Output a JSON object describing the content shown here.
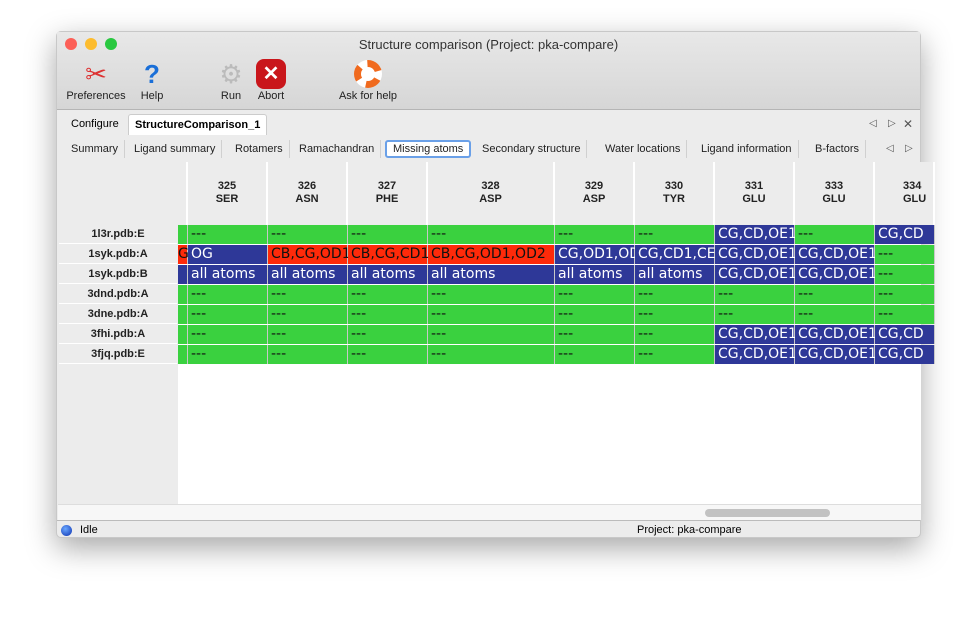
{
  "window": {
    "title": "Structure comparison (Project: pka-compare)"
  },
  "toolbar": [
    {
      "label": "Preferences",
      "icon": "tools-icon"
    },
    {
      "label": "Help",
      "icon": "help-icon"
    },
    {
      "label": "Run",
      "icon": "gear-icon"
    },
    {
      "label": "Abort",
      "icon": "abort-icon"
    },
    {
      "label": "Ask for help",
      "icon": "lifebuoy-icon"
    }
  ],
  "outer_tabs": [
    "Configure",
    "StructureComparison_1"
  ],
  "outer_active": 1,
  "inner_tabs": [
    "Summary",
    "Ligand summary",
    "Rotamers",
    "Ramachandran",
    "Missing atoms",
    "Secondary structure",
    "Water locations",
    "Ligand information",
    "B-factors"
  ],
  "inner_active": 4,
  "colors": {
    "present": "#3ad13f",
    "missing_partial": "#2e3898",
    "missing_differs": "#fe2a0a"
  },
  "table": {
    "columns": [
      {
        "num": "",
        "res": ""
      },
      {
        "num": "325",
        "res": "SER"
      },
      {
        "num": "326",
        "res": "ASN"
      },
      {
        "num": "327",
        "res": "PHE"
      },
      {
        "num": "328",
        "res": "ASP"
      },
      {
        "num": "329",
        "res": "ASP"
      },
      {
        "num": "330",
        "res": "TYR"
      },
      {
        "num": "331",
        "res": "GLU"
      },
      {
        "num": "333",
        "res": "GLU"
      },
      {
        "num": "334",
        "res": "GLU"
      }
    ],
    "rows": [
      {
        "label": "1l3r.pdb:E",
        "cells": [
          [
            "",
            "g"
          ],
          [
            "---",
            "g"
          ],
          [
            "---",
            "g"
          ],
          [
            "---",
            "g"
          ],
          [
            "---",
            "g"
          ],
          [
            "---",
            "g"
          ],
          [
            "---",
            "g"
          ],
          [
            "CG,CD,OE1",
            "b"
          ],
          [
            "---",
            "g"
          ],
          [
            "CG,CD",
            "b"
          ]
        ]
      },
      {
        "label": "1syk.pdb:A",
        "cells": [
          [
            "G",
            "r"
          ],
          [
            "OG",
            "b"
          ],
          [
            "CB,CG,OD1",
            "r"
          ],
          [
            "CB,CG,CD1",
            "r"
          ],
          [
            "CB,CG,OD1,OD2",
            "r"
          ],
          [
            "CG,OD1,OD",
            "b"
          ],
          [
            "CG,CD1,CE",
            "b"
          ],
          [
            "CG,CD,OE1",
            "b"
          ],
          [
            "CG,CD,OE1",
            "b"
          ],
          [
            "---",
            "g"
          ]
        ]
      },
      {
        "label": "1syk.pdb:B",
        "cells": [
          [
            "",
            "b"
          ],
          [
            "all atoms",
            "b"
          ],
          [
            "all atoms",
            "b"
          ],
          [
            "all atoms",
            "b"
          ],
          [
            "all atoms",
            "b"
          ],
          [
            "all atoms",
            "b"
          ],
          [
            "all atoms",
            "b"
          ],
          [
            "CG,CD,OE1",
            "b"
          ],
          [
            "CG,CD,OE1",
            "b"
          ],
          [
            "---",
            "g"
          ]
        ]
      },
      {
        "label": "3dnd.pdb:A",
        "cells": [
          [
            "",
            "g"
          ],
          [
            "---",
            "g"
          ],
          [
            "---",
            "g"
          ],
          [
            "---",
            "g"
          ],
          [
            "---",
            "g"
          ],
          [
            "---",
            "g"
          ],
          [
            "---",
            "g"
          ],
          [
            "---",
            "g"
          ],
          [
            "---",
            "g"
          ],
          [
            "---",
            "g"
          ]
        ]
      },
      {
        "label": "3dne.pdb:A",
        "cells": [
          [
            "",
            "g"
          ],
          [
            "---",
            "g"
          ],
          [
            "---",
            "g"
          ],
          [
            "---",
            "g"
          ],
          [
            "---",
            "g"
          ],
          [
            "---",
            "g"
          ],
          [
            "---",
            "g"
          ],
          [
            "---",
            "g"
          ],
          [
            "---",
            "g"
          ],
          [
            "---",
            "g"
          ]
        ]
      },
      {
        "label": "3fhi.pdb:A",
        "cells": [
          [
            "",
            "g"
          ],
          [
            "---",
            "g"
          ],
          [
            "---",
            "g"
          ],
          [
            "---",
            "g"
          ],
          [
            "---",
            "g"
          ],
          [
            "---",
            "g"
          ],
          [
            "---",
            "g"
          ],
          [
            "CG,CD,OE1",
            "b"
          ],
          [
            "CG,CD,OE1",
            "b"
          ],
          [
            "CG,CD",
            "b"
          ]
        ]
      },
      {
        "label": "3fjq.pdb:E",
        "cells": [
          [
            "",
            "g"
          ],
          [
            "---",
            "g"
          ],
          [
            "---",
            "g"
          ],
          [
            "---",
            "g"
          ],
          [
            "---",
            "g"
          ],
          [
            "---",
            "g"
          ],
          [
            "---",
            "g"
          ],
          [
            "CG,CD,OE1",
            "b"
          ],
          [
            "CG,CD,OE1",
            "b"
          ],
          [
            "CG,CD",
            "b"
          ]
        ]
      }
    ]
  },
  "status": {
    "state": "Idle",
    "project": "Project: pka-compare"
  }
}
